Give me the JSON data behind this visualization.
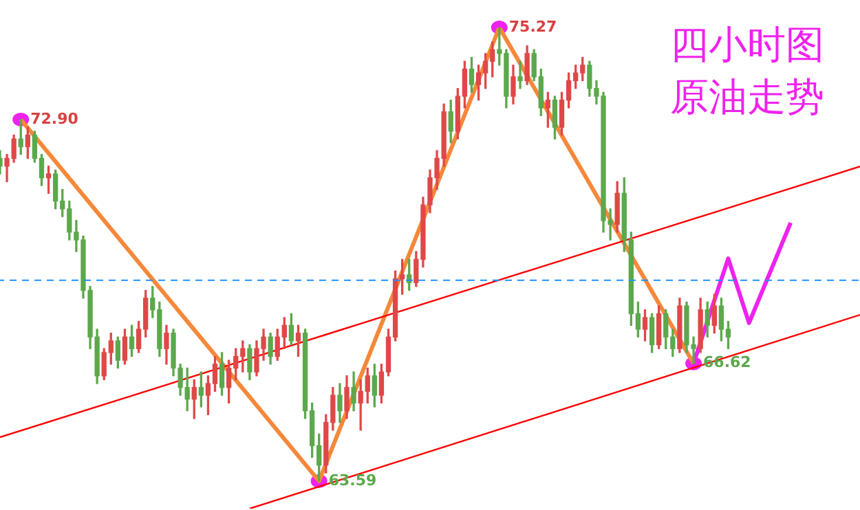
{
  "chart_data": {
    "type": "candlestick",
    "title": "四小时图原油走势",
    "categories": [
      null,
      null,
      null,
      null,
      null,
      null,
      null,
      null,
      null,
      null,
      null,
      null,
      null,
      null,
      null,
      null,
      null,
      null,
      null,
      null,
      null,
      null,
      null,
      null,
      null,
      null,
      null,
      null,
      null,
      null,
      null,
      null,
      null,
      null,
      null,
      null,
      null,
      null,
      null,
      null,
      null,
      null,
      null,
      null,
      null,
      null,
      null,
      null,
      null,
      null,
      null,
      null,
      null,
      null,
      null,
      null,
      null,
      null,
      null,
      null,
      null,
      null,
      null,
      null,
      null,
      null,
      null,
      null,
      null,
      null,
      null,
      null,
      null,
      null,
      null,
      null,
      null,
      null,
      null,
      null,
      null,
      null,
      null,
      null,
      null,
      null,
      null,
      null,
      null,
      null,
      null,
      null,
      null,
      null,
      null,
      null,
      null,
      null,
      null,
      null,
      null,
      null,
      null,
      null,
      null,
      null,
      null,
      null,
      null,
      null,
      null,
      null,
      null,
      null,
      null,
      null,
      null,
      null,
      null,
      null,
      null,
      null,
      null,
      null,
      null
    ],
    "ohlc": [
      [
        71.9,
        72.1,
        71.5,
        71.7
      ],
      [
        71.7,
        72.0,
        71.3,
        71.9
      ],
      [
        71.9,
        72.5,
        71.8,
        72.4
      ],
      [
        72.4,
        72.9,
        72.0,
        72.2
      ],
      [
        72.2,
        72.7,
        71.9,
        72.5
      ],
      [
        72.5,
        72.6,
        71.8,
        71.9
      ],
      [
        71.9,
        72.0,
        71.2,
        71.4
      ],
      [
        71.4,
        71.7,
        71.0,
        71.5
      ],
      [
        71.5,
        71.6,
        70.6,
        70.8
      ],
      [
        70.8,
        71.1,
        70.4,
        70.6
      ],
      [
        70.6,
        70.8,
        69.8,
        70.0
      ],
      [
        70.0,
        70.3,
        69.5,
        69.8
      ],
      [
        69.8,
        69.9,
        68.3,
        68.5
      ],
      [
        68.5,
        68.6,
        67.0,
        67.3
      ],
      [
        67.3,
        67.5,
        66.1,
        66.3
      ],
      [
        66.3,
        67.0,
        66.2,
        66.9
      ],
      [
        66.9,
        67.4,
        66.6,
        67.2
      ],
      [
        67.2,
        67.3,
        66.5,
        66.7
      ],
      [
        66.7,
        67.5,
        66.6,
        67.3
      ],
      [
        67.3,
        67.6,
        66.8,
        67.0
      ],
      [
        67.0,
        67.7,
        66.9,
        67.5
      ],
      [
        67.5,
        68.5,
        67.3,
        68.3
      ],
      [
        68.3,
        68.6,
        67.8,
        68.0
      ],
      [
        68.0,
        68.2,
        66.8,
        67.0
      ],
      [
        67.0,
        67.6,
        66.6,
        67.4
      ],
      [
        67.4,
        67.5,
        66.3,
        66.5
      ],
      [
        66.5,
        66.6,
        65.8,
        66.0
      ],
      [
        66.0,
        66.5,
        65.4,
        65.7
      ],
      [
        65.7,
        66.2,
        65.2,
        66.0
      ],
      [
        66.0,
        66.4,
        65.5,
        65.8
      ],
      [
        65.8,
        66.3,
        65.3,
        66.1
      ],
      [
        66.1,
        66.8,
        65.9,
        66.6
      ],
      [
        66.6,
        66.9,
        65.8,
        66.0
      ],
      [
        66.0,
        66.7,
        65.6,
        66.5
      ],
      [
        66.5,
        67.0,
        66.2,
        66.8
      ],
      [
        66.8,
        67.2,
        66.4,
        67.0
      ],
      [
        67.0,
        67.1,
        66.2,
        66.4
      ],
      [
        66.4,
        67.2,
        66.3,
        67.0
      ],
      [
        67.0,
        67.5,
        66.7,
        67.3
      ],
      [
        67.3,
        67.4,
        66.6,
        66.8
      ],
      [
        66.8,
        67.5,
        66.7,
        67.3
      ],
      [
        67.3,
        67.8,
        67.0,
        67.6
      ],
      [
        67.6,
        67.9,
        67.1,
        67.2
      ],
      [
        67.2,
        67.6,
        66.8,
        67.4
      ],
      [
        67.4,
        67.5,
        65.2,
        65.4
      ],
      [
        65.4,
        65.6,
        64.2,
        64.5
      ],
      [
        64.5,
        64.8,
        63.59,
        64.0
      ],
      [
        64.0,
        65.3,
        63.8,
        65.1
      ],
      [
        65.1,
        66.0,
        64.9,
        65.8
      ],
      [
        65.8,
        66.1,
        65.1,
        65.4
      ],
      [
        65.4,
        66.3,
        65.2,
        66.0
      ],
      [
        66.0,
        66.4,
        65.4,
        65.6
      ],
      [
        65.6,
        66.2,
        64.9,
        65.9
      ],
      [
        65.9,
        66.5,
        65.6,
        66.3
      ],
      [
        66.3,
        66.6,
        65.5,
        65.8
      ],
      [
        65.8,
        66.6,
        65.6,
        66.4
      ],
      [
        66.4,
        67.5,
        66.3,
        67.3
      ],
      [
        67.3,
        69.0,
        67.2,
        68.8
      ],
      [
        68.8,
        69.3,
        68.4,
        68.9
      ],
      [
        68.9,
        69.3,
        68.5,
        68.7
      ],
      [
        68.7,
        69.5,
        68.6,
        69.3
      ],
      [
        69.3,
        70.9,
        69.1,
        70.7
      ],
      [
        70.7,
        71.6,
        70.5,
        71.4
      ],
      [
        71.4,
        72.1,
        71.1,
        71.9
      ],
      [
        71.9,
        73.3,
        71.7,
        73.1
      ],
      [
        73.1,
        73.4,
        72.3,
        72.6
      ],
      [
        72.6,
        73.7,
        72.4,
        73.5
      ],
      [
        73.5,
        74.4,
        73.2,
        74.2
      ],
      [
        74.2,
        74.5,
        73.6,
        73.8
      ],
      [
        73.8,
        74.3,
        73.4,
        74.1
      ],
      [
        74.1,
        74.6,
        73.7,
        74.4
      ],
      [
        74.4,
        74.9,
        74.0,
        74.7
      ],
      [
        74.7,
        75.27,
        74.3,
        74.6
      ],
      [
        74.6,
        74.7,
        73.2,
        73.5
      ],
      [
        73.5,
        74.3,
        73.3,
        74.0
      ],
      [
        74.0,
        74.4,
        73.7,
        73.9
      ],
      [
        73.9,
        74.8,
        73.8,
        74.6
      ],
      [
        74.6,
        74.7,
        73.9,
        74.0
      ],
      [
        74.0,
        74.2,
        73.0,
        73.2
      ],
      [
        73.2,
        73.6,
        72.7,
        73.4
      ],
      [
        73.4,
        73.5,
        72.4,
        72.7
      ],
      [
        72.7,
        73.6,
        72.5,
        73.4
      ],
      [
        73.4,
        74.1,
        73.2,
        73.9
      ],
      [
        73.9,
        74.3,
        73.7,
        74.1
      ],
      [
        74.1,
        74.5,
        73.9,
        74.3
      ],
      [
        74.3,
        74.4,
        73.5,
        73.7
      ],
      [
        73.7,
        73.9,
        73.3,
        73.5
      ],
      [
        73.5,
        73.6,
        70.0,
        70.3
      ],
      [
        70.3,
        70.6,
        69.8,
        70.2
      ],
      [
        70.2,
        71.3,
        70.0,
        71.0
      ],
      [
        71.0,
        71.4,
        69.5,
        69.8
      ],
      [
        69.8,
        70.0,
        67.6,
        67.9
      ],
      [
        67.9,
        68.2,
        67.3,
        67.5
      ],
      [
        67.5,
        68.0,
        67.2,
        67.8
      ],
      [
        67.8,
        67.9,
        66.9,
        67.1
      ],
      [
        67.1,
        68.1,
        67.0,
        67.9
      ],
      [
        67.9,
        68.0,
        67.0,
        67.3
      ],
      [
        67.3,
        67.5,
        66.8,
        67.0
      ],
      [
        67.0,
        68.3,
        66.9,
        68.1
      ],
      [
        68.1,
        68.2,
        66.9,
        67.1
      ],
      [
        67.1,
        67.3,
        66.62,
        67.0
      ],
      [
        67.0,
        68.3,
        66.9,
        68.0
      ],
      [
        68.0,
        68.2,
        67.3,
        67.6
      ],
      [
        67.6,
        68.4,
        67.4,
        68.1
      ],
      [
        68.1,
        68.3,
        67.2,
        67.5
      ],
      [
        67.5,
        67.7,
        67.0,
        67.3
      ],
      null,
      null,
      null,
      null,
      null,
      null,
      null,
      null,
      null,
      null,
      null,
      null,
      null,
      null,
      null,
      null,
      null,
      null,
      null
    ],
    "colors": [
      "#5ca84c",
      "#e04848",
      "#e04848",
      "#5ca84c",
      "#e04848",
      "#5ca84c",
      "#5ca84c",
      "#e04848",
      "#5ca84c",
      "#5ca84c",
      "#5ca84c",
      "#5ca84c",
      "#5ca84c",
      "#5ca84c",
      "#5ca84c",
      "#e04848",
      "#e04848",
      "#5ca84c",
      "#e04848",
      "#5ca84c",
      "#e04848",
      "#e04848",
      "#5ca84c",
      "#5ca84c",
      "#e04848",
      "#5ca84c",
      "#5ca84c",
      "#5ca84c",
      "#e04848",
      "#5ca84c",
      "#e04848",
      "#e04848",
      "#5ca84c",
      "#e04848",
      "#e04848",
      "#e04848",
      "#5ca84c",
      "#e04848",
      "#e04848",
      "#5ca84c",
      "#e04848",
      "#e04848",
      "#5ca84c",
      "#e04848",
      "#5ca84c",
      "#5ca84c",
      "#5ca84c",
      "#e04848",
      "#e04848",
      "#5ca84c",
      "#e04848",
      "#5ca84c",
      "#e04848",
      "#e04848",
      "#5ca84c",
      "#e04848",
      "#e04848",
      "#e04848",
      "#e04848",
      "#5ca84c",
      "#e04848",
      "#e04848",
      "#e04848",
      "#e04848",
      "#e04848",
      "#5ca84c",
      "#e04848",
      "#e04848",
      "#5ca84c",
      "#e04848",
      "#e04848",
      "#e04848",
      "#5ca84c",
      "#5ca84c",
      "#e04848",
      "#5ca84c",
      "#e04848",
      "#5ca84c",
      "#5ca84c",
      "#e04848",
      "#5ca84c",
      "#e04848",
      "#e04848",
      "#e04848",
      "#e04848",
      "#5ca84c",
      "#5ca84c",
      "#5ca84c",
      "#5ca84c",
      "#e04848",
      "#5ca84c",
      "#5ca84c",
      "#5ca84c",
      "#e04848",
      "#5ca84c",
      "#e04848",
      "#5ca84c",
      "#5ca84c",
      "#e04848",
      "#5ca84c",
      "#5ca84c",
      "#e04848",
      "#5ca84c",
      "#e04848",
      "#5ca84c",
      "#5ca84c",
      null,
      null,
      null,
      null,
      null,
      null,
      null,
      null,
      null,
      null,
      null,
      null,
      null,
      null,
      null,
      null,
      null,
      null,
      null
    ],
    "series": [
      {
        "type": "line",
        "color": "#ff0000",
        "values": [
          64.72,
          null,
          null,
          null,
          null,
          null,
          null,
          null,
          null,
          null,
          null,
          null,
          null,
          null,
          null,
          null,
          null,
          null,
          null,
          null,
          null,
          null,
          null,
          null,
          null,
          null,
          null,
          null,
          null,
          null,
          null,
          null,
          null,
          null,
          null,
          null,
          null,
          null,
          null,
          null,
          null,
          null,
          null,
          null,
          null,
          null,
          null,
          null,
          null,
          null,
          null,
          null,
          null,
          null,
          null,
          null,
          null,
          null,
          null,
          null,
          null,
          null,
          null,
          null,
          null,
          null,
          null,
          null,
          null,
          null,
          null,
          null,
          null,
          null,
          null,
          null,
          null,
          null,
          null,
          null,
          null,
          null,
          null,
          null,
          null,
          null,
          null,
          null,
          null,
          null,
          null,
          null,
          null,
          null,
          null,
          null,
          null,
          null,
          null,
          null,
          null,
          null,
          null,
          null,
          null,
          null,
          null,
          null,
          null,
          null,
          null,
          null,
          null,
          null,
          null,
          null,
          null,
          null,
          null,
          null,
          null,
          null,
          null,
          null,
          71.69
        ]
      },
      {
        "type": "line",
        "color": "#ff0000",
        "values": [
          null,
          null,
          null,
          null,
          null,
          null,
          null,
          null,
          null,
          null,
          null,
          null,
          null,
          null,
          null,
          null,
          null,
          null,
          null,
          null,
          null,
          null,
          null,
          null,
          null,
          null,
          null,
          null,
          null,
          null,
          null,
          null,
          null,
          null,
          null,
          null,
          62.88,
          null,
          null,
          null,
          null,
          null,
          null,
          null,
          null,
          null,
          null,
          null,
          null,
          null,
          null,
          null,
          null,
          null,
          null,
          null,
          null,
          null,
          null,
          null,
          null,
          null,
          null,
          null,
          null,
          null,
          null,
          null,
          null,
          null,
          null,
          null,
          null,
          null,
          null,
          null,
          null,
          null,
          null,
          null,
          null,
          null,
          null,
          null,
          null,
          null,
          null,
          null,
          null,
          null,
          null,
          null,
          null,
          null,
          null,
          null,
          null,
          null,
          null,
          null,
          null,
          null,
          null,
          null,
          null,
          null,
          null,
          null,
          null,
          null,
          null,
          null,
          null,
          null,
          null,
          null,
          null,
          null,
          null,
          null,
          null,
          null,
          null,
          null,
          67.87
        ]
      },
      {
        "type": "line",
        "color": "#f5883a",
        "values": [
          null,
          null,
          null,
          72.9,
          null,
          null,
          null,
          null,
          null,
          null,
          null,
          null,
          null,
          null,
          null,
          null,
          null,
          null,
          null,
          null,
          null,
          null,
          null,
          null,
          null,
          null,
          null,
          null,
          null,
          null,
          null,
          null,
          null,
          null,
          null,
          null,
          null,
          null,
          null,
          null,
          null,
          null,
          null,
          null,
          null,
          null,
          63.59,
          null,
          null,
          null,
          null,
          null,
          null,
          null,
          null,
          null,
          null,
          null,
          null,
          null,
          null,
          null,
          null,
          null,
          null,
          null,
          null,
          null,
          null,
          null,
          null,
          null,
          75.27,
          null,
          null,
          null,
          null,
          null,
          null,
          null,
          null,
          null,
          null,
          null,
          null,
          null,
          null,
          null,
          null,
          null,
          null,
          null,
          null,
          null,
          null,
          null,
          null,
          null,
          null,
          null,
          66.62,
          null,
          null,
          null,
          null,
          null,
          null,
          null,
          null,
          null,
          null,
          null,
          null,
          null,
          null,
          null,
          null,
          null,
          null,
          null,
          null,
          null,
          null,
          null,
          null
        ]
      },
      {
        "type": "line",
        "color": "#ee22ee",
        "values": [
          null,
          null,
          null,
          null,
          null,
          null,
          null,
          null,
          null,
          null,
          null,
          null,
          null,
          null,
          null,
          null,
          null,
          null,
          null,
          null,
          null,
          null,
          null,
          null,
          null,
          null,
          null,
          null,
          null,
          null,
          null,
          null,
          null,
          null,
          null,
          null,
          null,
          null,
          null,
          null,
          null,
          null,
          null,
          null,
          null,
          null,
          null,
          null,
          null,
          null,
          null,
          null,
          null,
          null,
          null,
          null,
          null,
          null,
          null,
          null,
          null,
          null,
          null,
          null,
          null,
          null,
          null,
          null,
          null,
          null,
          null,
          null,
          null,
          null,
          null,
          null,
          null,
          null,
          null,
          null,
          null,
          null,
          null,
          null,
          null,
          null,
          null,
          null,
          null,
          null,
          null,
          null,
          null,
          null,
          null,
          null,
          null,
          null,
          null,
          null,
          66.62,
          null,
          null,
          null,
          null,
          69.32,
          null,
          null,
          67.66,
          null,
          null,
          null,
          null,
          null,
          70.24,
          null,
          null,
          null,
          null,
          null,
          null,
          null,
          null,
          null,
          null
        ]
      }
    ],
    "ref_lines": [
      {
        "axis": "y",
        "value": 68.76,
        "color": "#1e90ff",
        "line_style": "dashed"
      }
    ],
    "annotations": [
      "72.90",
      {
        "text": "63.59",
        "y": 63.59
      },
      "75.27",
      {
        "text": "66.62",
        "y": 66.62
      }
    ]
  }
}
